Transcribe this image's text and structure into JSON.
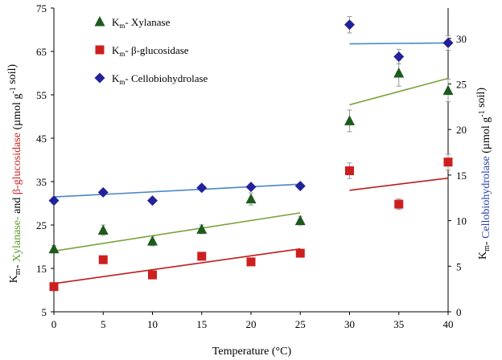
{
  "chart_data": {
    "type": "scatter",
    "xlabel": "Temperature (°C)",
    "x_ticks": [
      0,
      5,
      10,
      15,
      20,
      25,
      30,
      35,
      40
    ],
    "xlim": [
      0,
      40
    ],
    "y_left": {
      "ylim": [
        5,
        75
      ],
      "ticks": [
        5,
        15,
        25,
        35,
        45,
        55,
        65,
        75
      ],
      "label_parts": [
        {
          "text": "K",
          "color": "#000000"
        },
        {
          "text": "m",
          "color": "#000000",
          "sub": true
        },
        {
          "text": "- ",
          "color": "#000000"
        },
        {
          "text": "Xylanase-",
          "color": "#5a9a2a"
        },
        {
          "text": " and ",
          "color": "#000000"
        },
        {
          "text": "β-glucosidase",
          "color": "#cc1f1f"
        },
        {
          "text": " (µmol g",
          "color": "#000000"
        },
        {
          "text": "-1",
          "color": "#000000",
          "sup": true
        },
        {
          "text": " soil)",
          "color": "#000000"
        }
      ]
    },
    "y_right": {
      "ylim": [
        0,
        33.33
      ],
      "ticks": [
        0,
        5,
        10,
        15,
        20,
        25,
        30
      ],
      "label_parts": [
        {
          "text": "K",
          "color": "#000000"
        },
        {
          "text": "m",
          "color": "#000000",
          "sub": true
        },
        {
          "text": "- ",
          "color": "#000000"
        },
        {
          "text": "Cellobiohydrolase",
          "color": "#2a3fa8"
        },
        {
          "text": " (µmol g",
          "color": "#000000"
        },
        {
          "text": "-1",
          "color": "#000000",
          "sup": true
        },
        {
          "text": " soil)",
          "color": "#000000"
        }
      ]
    },
    "series": [
      {
        "name": "Xylanase",
        "legend_main": "K",
        "legend_sub": "m",
        "legend_rest": "- Xylanase",
        "axis": "left",
        "marker": "triangle",
        "color": "#1e5a1e",
        "x": [
          0,
          5,
          10,
          15,
          20,
          25,
          30,
          35,
          40
        ],
        "y": [
          19.5,
          23.8,
          21.3,
          24,
          31,
          26,
          49,
          60,
          56
        ],
        "err": [
          0.8,
          1.2,
          1.1,
          1.0,
          1.4,
          1.0,
          2.5,
          3.0,
          2.6
        ],
        "trend_color": "#7aa23a",
        "trends": [
          {
            "x": [
              0,
              25
            ],
            "y": [
              19.0,
              27.8
            ]
          },
          {
            "x": [
              30,
              40
            ],
            "y": [
              52.7,
              58.8
            ]
          }
        ]
      },
      {
        "name": "β-glucosidase",
        "legend_main": "K",
        "legend_sub": "m",
        "legend_rest": "- β-glucosidase",
        "axis": "left",
        "marker": "square",
        "color": "#cc1f1f",
        "x": [
          0,
          5,
          10,
          15,
          20,
          25,
          30,
          35,
          40
        ],
        "y": [
          10.8,
          17,
          13.5,
          17.8,
          16.5,
          18.5,
          37.5,
          29.8,
          39.5
        ],
        "err": [
          0.5,
          0.6,
          0.6,
          0.6,
          0.6,
          0.6,
          1.8,
          1.2,
          1.8
        ],
        "trend_color": "#c01a1a",
        "trends": [
          {
            "x": [
              0,
              25
            ],
            "y": [
              11.5,
              19.5
            ]
          },
          {
            "x": [
              30,
              40
            ],
            "y": [
              33.0,
              35.8
            ]
          }
        ]
      },
      {
        "name": "Cellobiohydrolase",
        "legend_main": "K",
        "legend_sub": "m",
        "legend_rest": "- Cellobiohydrolase",
        "axis": "right",
        "marker": "diamond",
        "color": "#22229a",
        "x": [
          0,
          5,
          10,
          15,
          20,
          25,
          30,
          35,
          40
        ],
        "y": [
          12.2,
          13.1,
          12.2,
          13.6,
          13.7,
          13.8,
          31.5,
          28,
          29.5
        ],
        "err": [
          0.25,
          0.3,
          0.25,
          0.3,
          0.3,
          0.3,
          0.9,
          0.8,
          0.8
        ],
        "trend_color": "#4a86c8",
        "trends": [
          {
            "x": [
              0,
              25
            ],
            "y": [
              12.6,
              14.0
            ]
          },
          {
            "x": [
              30,
              40
            ],
            "y": [
              29.4,
              29.5
            ]
          }
        ]
      }
    ]
  }
}
